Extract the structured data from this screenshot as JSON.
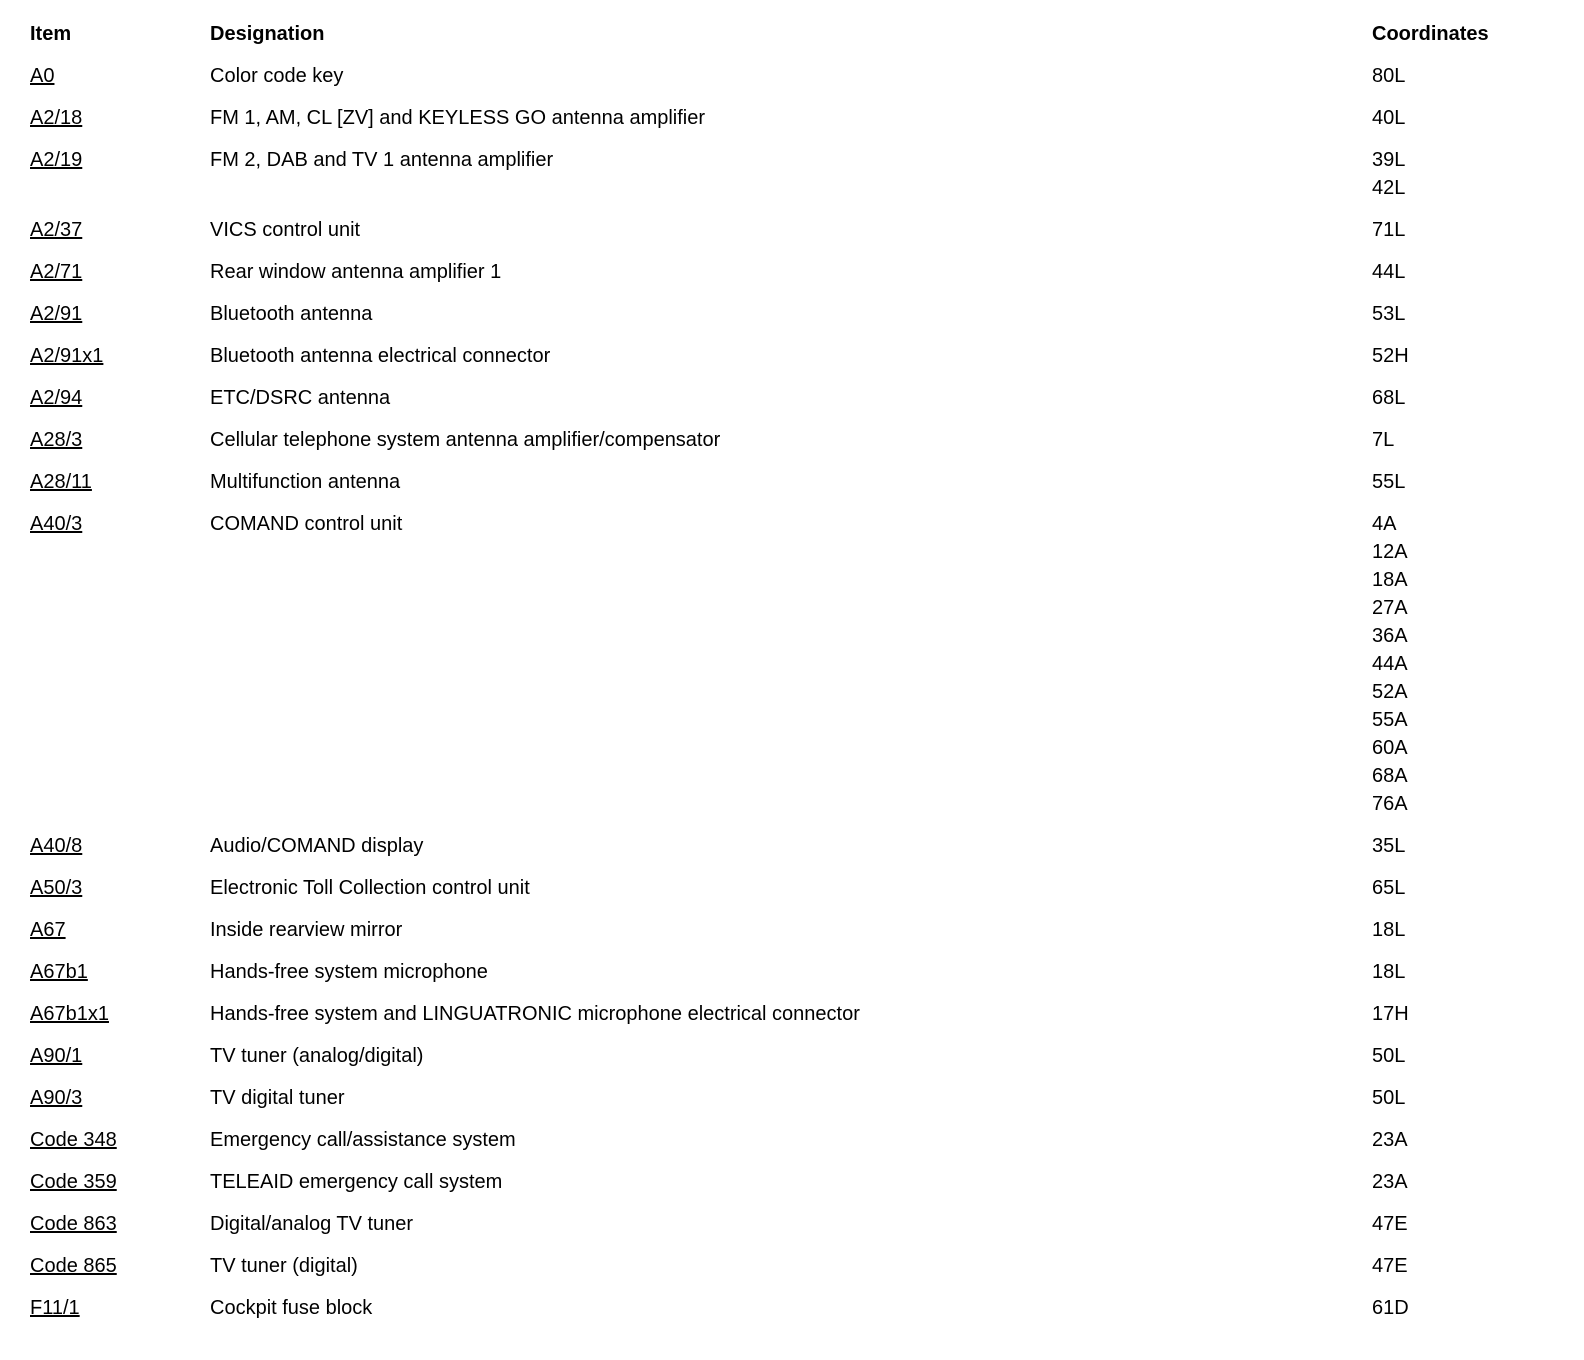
{
  "page": {
    "background": "#ffffff",
    "text_color": "#000000"
  },
  "table": {
    "headers": {
      "item": "Item",
      "designation": "Designation",
      "coordinates": "Coordinates"
    },
    "rows": [
      {
        "item": "A0",
        "designation": "Color code key",
        "coordinates": "80L"
      },
      {
        "item": "A2/18",
        "designation": "FM 1, AM, CL [ZV] and KEYLESS GO antenna amplifier",
        "coordinates": "40L"
      },
      {
        "item": "A2/19",
        "designation": "FM 2, DAB and TV 1 antenna amplifier",
        "coordinates": "39L\n42L"
      },
      {
        "item": "A2/37",
        "designation": "VICS control unit",
        "coordinates": "71L"
      },
      {
        "item": "A2/71",
        "designation": "Rear window antenna amplifier 1",
        "coordinates": "44L"
      },
      {
        "item": "A2/91",
        "designation": "Bluetooth antenna",
        "coordinates": "53L"
      },
      {
        "item": "A2/91x1",
        "designation": "Bluetooth antenna electrical connector",
        "coordinates": "52H"
      },
      {
        "item": "A2/94",
        "designation": "ETC/DSRC antenna",
        "coordinates": "68L"
      },
      {
        "item": "A28/3",
        "designation": "Cellular telephone system antenna amplifier/compensator",
        "coordinates": "7L"
      },
      {
        "item": "A28/11",
        "designation": "Multifunction antenna",
        "coordinates": "55L"
      },
      {
        "item": "A40/3",
        "designation": "COMAND control unit",
        "coordinates": "4A\n12A\n18A\n27A\n36A\n44A\n52A\n55A\n60A\n68A\n76A"
      },
      {
        "item": "A40/8",
        "designation": "Audio/COMAND display",
        "coordinates": "35L"
      },
      {
        "item": "A50/3",
        "designation": "Electronic Toll Collection control unit",
        "coordinates": "65L"
      },
      {
        "item": "A67",
        "designation": "Inside rearview mirror",
        "coordinates": "18L"
      },
      {
        "item": "A67b1",
        "designation": "Hands-free system microphone",
        "coordinates": "18L"
      },
      {
        "item": "A67b1x1",
        "designation": "Hands-free system and LINGUATRONIC microphone electrical connector",
        "coordinates": "17H"
      },
      {
        "item": "A90/1",
        "designation": "TV tuner (analog/digital)",
        "coordinates": "50L"
      },
      {
        "item": "A90/3",
        "designation": "TV digital tuner",
        "coordinates": "50L"
      },
      {
        "item": "Code 348",
        "designation": "Emergency call/assistance system",
        "coordinates": "23A"
      },
      {
        "item": "Code 359",
        "designation": "TELEAID emergency call system",
        "coordinates": "23A"
      },
      {
        "item": "Code 863",
        "designation": "Digital/analog TV tuner",
        "coordinates": "47E"
      },
      {
        "item": "Code 865",
        "designation": "TV tuner (digital)",
        "coordinates": "47E"
      },
      {
        "item": "F11/1",
        "designation": "Cockpit fuse block",
        "coordinates": "61D"
      }
    ]
  }
}
